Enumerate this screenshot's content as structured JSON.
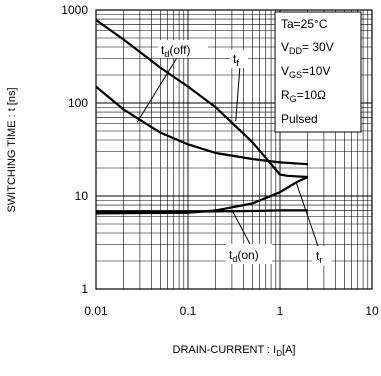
{
  "chart_data": {
    "type": "line",
    "xlabel": {
      "main": "DRAIN-CURRENT : I",
      "sub": "D",
      "unit": "[A]"
    },
    "ylabel": "SWITCHING TIME : t [ns]",
    "x_scale": "log",
    "y_scale": "log",
    "xlim": [
      0.01,
      10
    ],
    "ylim": [
      1,
      1000
    ],
    "x_ticks": [
      "0.01",
      "0.1",
      "1",
      "10"
    ],
    "y_ticks": [
      "1",
      "10",
      "100",
      "1000"
    ],
    "grid": true,
    "conditions": [
      {
        "text": "Ta=25°C"
      },
      {
        "main": "V",
        "sub": "DD",
        "rest": "= 30V"
      },
      {
        "main": "V",
        "sub": "GS",
        "rest": "=10V"
      },
      {
        "main": "R",
        "sub": "G",
        "rest": "=10Ω"
      },
      {
        "text": "Pulsed"
      }
    ],
    "series": [
      {
        "name": "td(off)",
        "label_main": "t",
        "label_sub": "d",
        "label_rest": "(off)",
        "x": [
          0.01,
          0.02,
          0.05,
          0.1,
          0.2,
          0.5,
          1,
          2
        ],
        "y": [
          150,
          85,
          48,
          36,
          29,
          25,
          23,
          22
        ]
      },
      {
        "name": "tf",
        "label_main": "t",
        "label_sub": "f",
        "label_rest": "",
        "x": [
          0.01,
          0.02,
          0.05,
          0.1,
          0.2,
          0.5,
          0.8,
          1,
          1.2,
          2
        ],
        "y": [
          780,
          480,
          240,
          150,
          90,
          38,
          22,
          17,
          16.5,
          16
        ]
      },
      {
        "name": "td(on)",
        "label_main": "t",
        "label_sub": "d",
        "label_rest": "(on)",
        "x": [
          0.01,
          0.1,
          0.5,
          1,
          2
        ],
        "y": [
          6.8,
          6.8,
          6.9,
          7.0,
          7.0
        ]
      },
      {
        "name": "tr",
        "label_main": "t",
        "label_sub": "r",
        "label_rest": "",
        "x": [
          0.01,
          0.1,
          0.2,
          0.5,
          1,
          1.5,
          2
        ],
        "y": [
          6.5,
          6.6,
          7.0,
          8.3,
          11,
          14,
          16
        ]
      }
    ]
  }
}
